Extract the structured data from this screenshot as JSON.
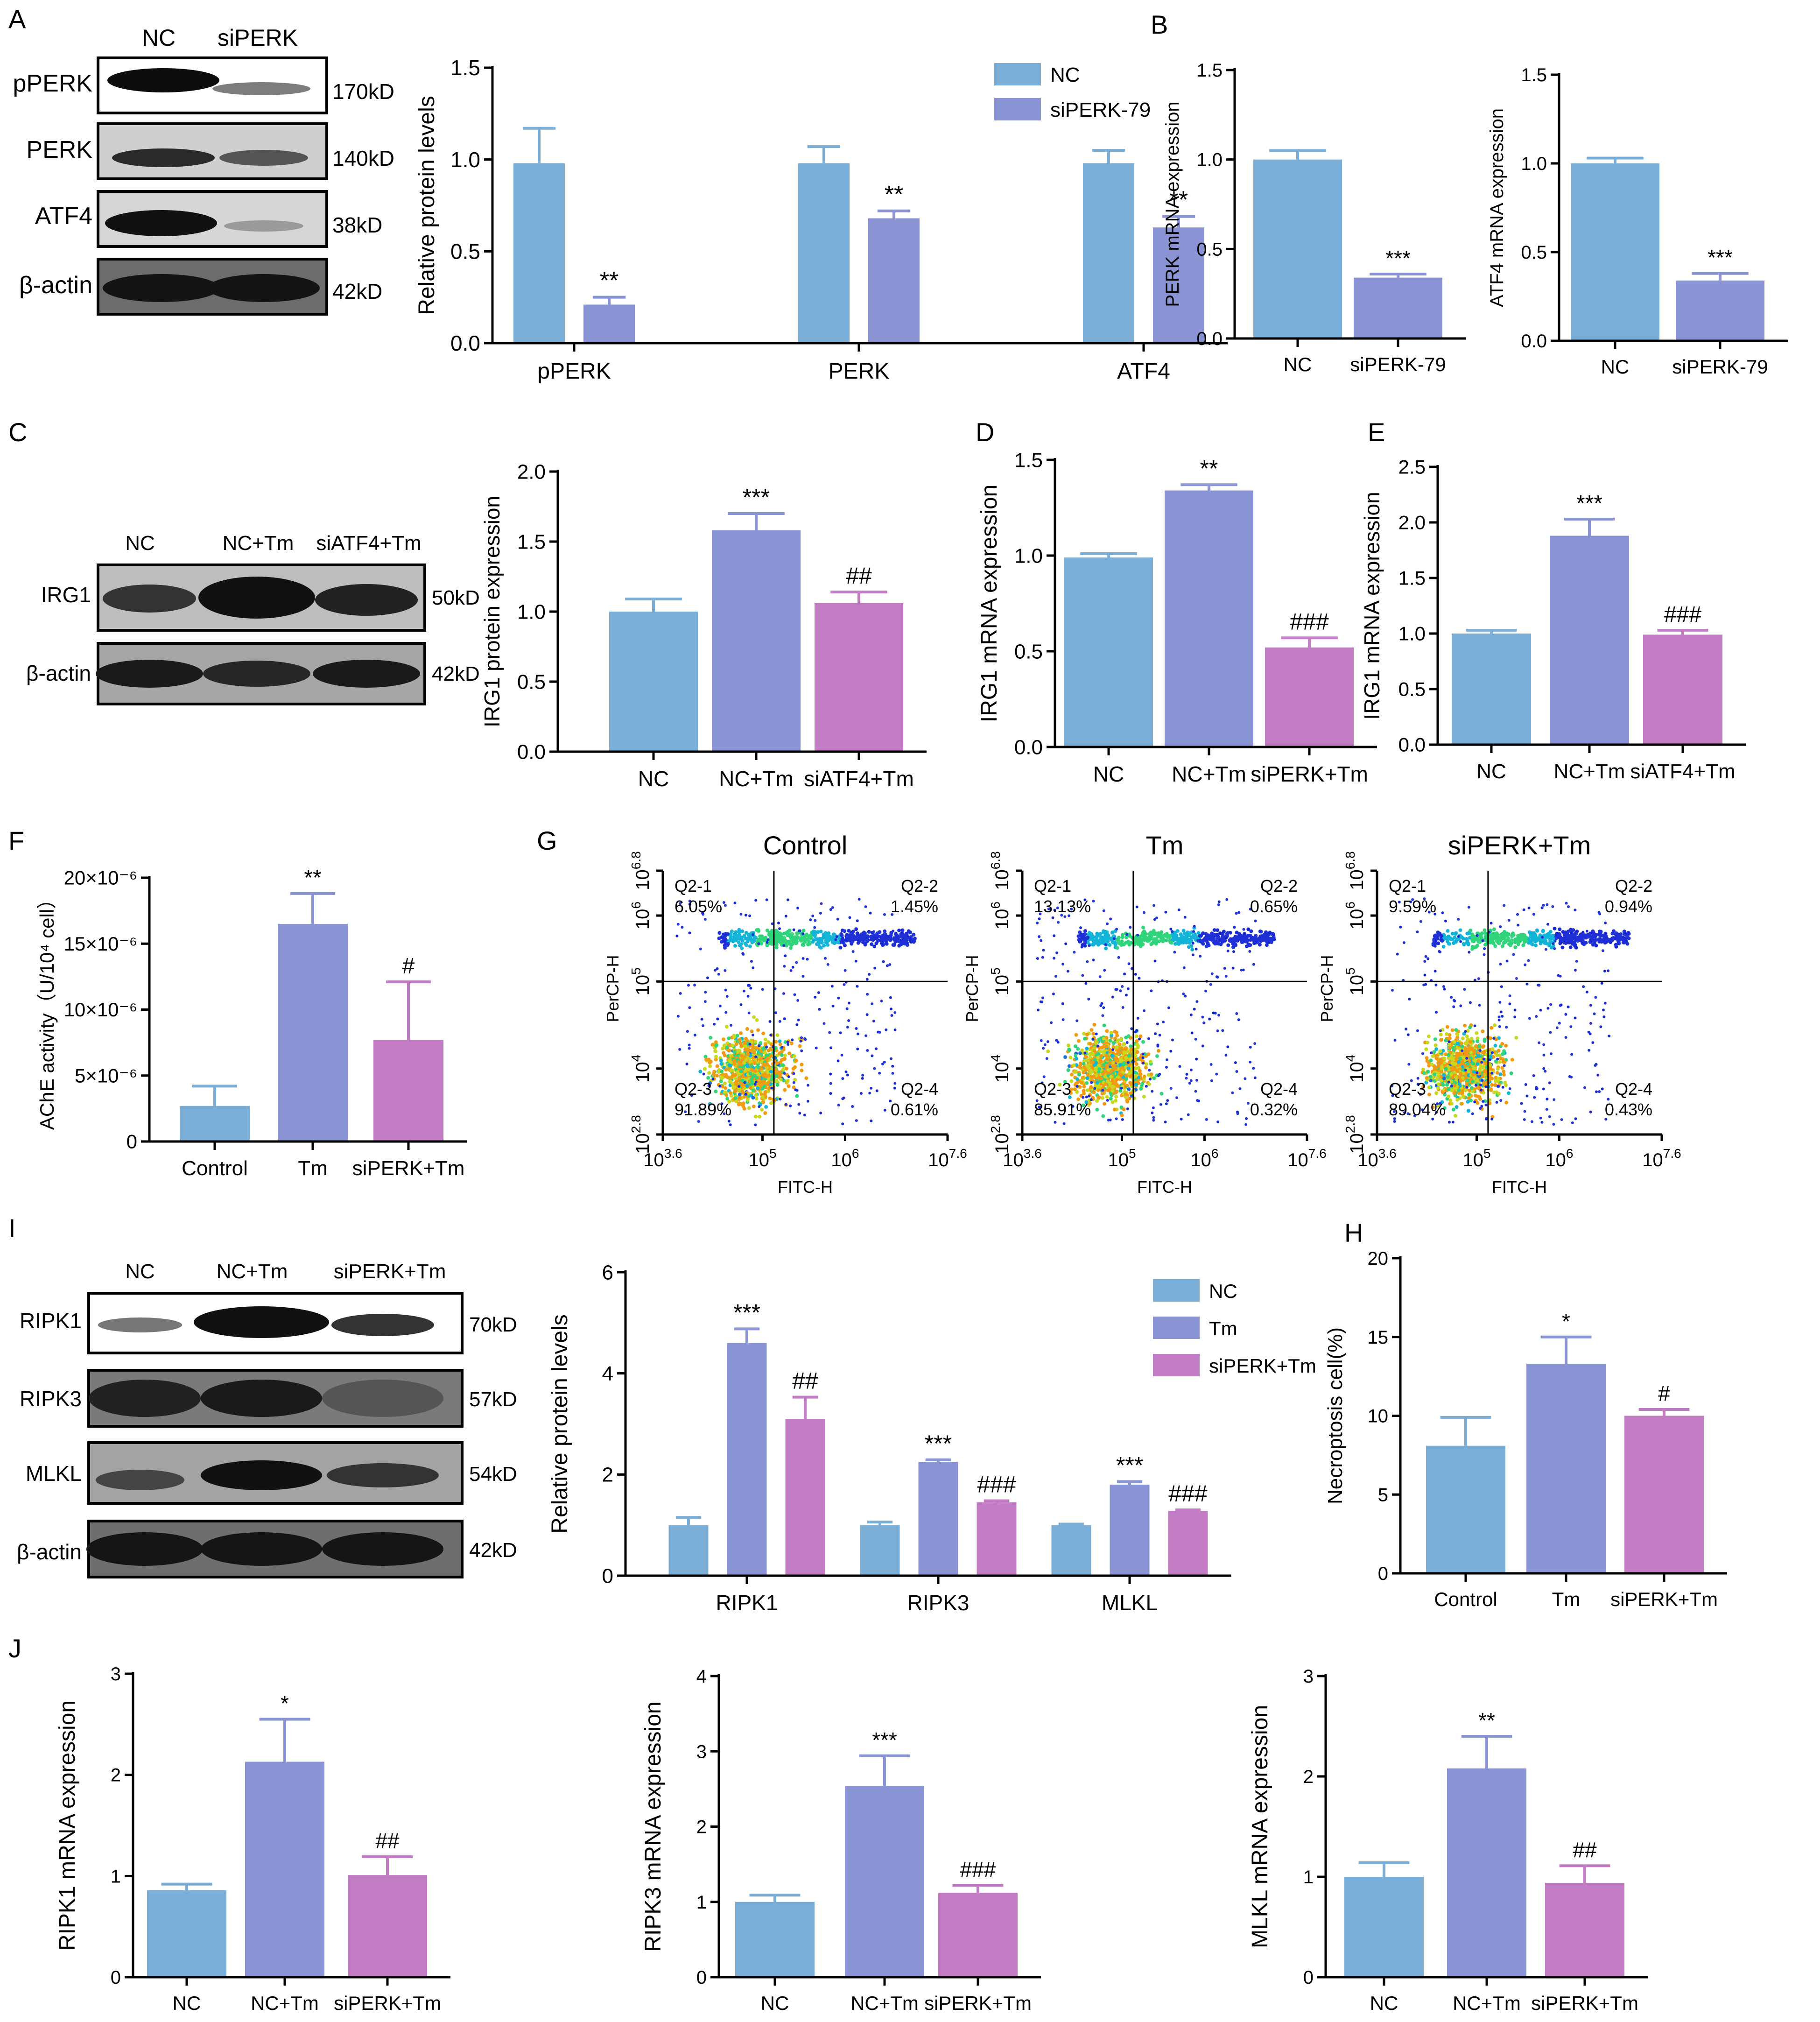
{
  "colors": {
    "nc": "#7aaed6",
    "tm": "#8a93d4",
    "si": "#c17cc3",
    "axis": "#000000"
  },
  "panels": {
    "A": {
      "letter": "A",
      "lanes": [
        "NC",
        "siPERK"
      ],
      "blots": [
        {
          "label": "pPERK",
          "size": "170kD"
        },
        {
          "label": "PERK",
          "size": "140kD"
        },
        {
          "label": "ATF4",
          "size": "38kD"
        },
        {
          "label": "β-actin",
          "size": "42kD"
        }
      ]
    },
    "B": {
      "letter": "B"
    },
    "C": {
      "letter": "C",
      "lanes": [
        "NC",
        "NC+Tm",
        "siATF4+Tm"
      ],
      "blots": [
        {
          "label": "IRG1",
          "size": "50kD"
        },
        {
          "label": "β-actin",
          "size": "42kD"
        }
      ]
    },
    "D": {
      "letter": "D"
    },
    "E": {
      "letter": "E"
    },
    "F": {
      "letter": "F"
    },
    "G": {
      "letter": "G"
    },
    "H": {
      "letter": "H"
    },
    "I": {
      "letter": "I",
      "lanes": [
        "NC",
        "NC+Tm",
        "siPERK+Tm"
      ],
      "blots": [
        {
          "label": "RIPK1",
          "size": "70kD"
        },
        {
          "label": "RIPK3",
          "size": "57kD"
        },
        {
          "label": "MLKL",
          "size": "54kD"
        },
        {
          "label": "β-actin",
          "size": "42kD"
        }
      ]
    },
    "J": {
      "letter": "J"
    }
  },
  "flow_panel": {
    "xlabel": "FITC-H",
    "ylabel": "PerCP-H",
    "x_ticks": [
      [
        "10",
        "3.6"
      ],
      [
        "10",
        "5"
      ],
      [
        "10",
        "6"
      ],
      [
        "10",
        "7.6"
      ]
    ],
    "y_ticks": [
      [
        "10",
        "2.8"
      ],
      [
        "10",
        "4"
      ],
      [
        "10",
        "5"
      ],
      [
        "10",
        "6"
      ],
      [
        "10",
        "6.8"
      ]
    ],
    "plots": [
      {
        "title": "Control",
        "q1": {
          "name": "Q2-1",
          "pct": "6.05%"
        },
        "q2": {
          "name": "Q2-2",
          "pct": "1.45%"
        },
        "q3": {
          "name": "Q2-3",
          "pct": "91.89%"
        },
        "q4": {
          "name": "Q2-4",
          "pct": "0.61%"
        }
      },
      {
        "title": "Tm",
        "q1": {
          "name": "Q2-1",
          "pct": "13.13%"
        },
        "q2": {
          "name": "Q2-2",
          "pct": "0.65%"
        },
        "q3": {
          "name": "Q2-3",
          "pct": "85.91%"
        },
        "q4": {
          "name": "Q2-4",
          "pct": "0.32%"
        }
      },
      {
        "title": "siPERK+Tm",
        "q1": {
          "name": "Q2-1",
          "pct": "9.59%"
        },
        "q2": {
          "name": "Q2-2",
          "pct": "0.94%"
        },
        "q3": {
          "name": "Q2-3",
          "pct": "89.04%"
        },
        "q4": {
          "name": "Q2-4",
          "pct": "0.43%"
        }
      }
    ]
  },
  "chart_data": [
    {
      "id": "A_bar",
      "type": "bar",
      "title": "",
      "xlabel": "",
      "ylabel": "Relative protein levels",
      "categories": [
        "pPERK",
        "PERK",
        "ATF4"
      ],
      "ylim": [
        0,
        1.5
      ],
      "yticks": [
        "0.0",
        "0.5",
        "1.0",
        "1.5"
      ],
      "legend": "top-right",
      "series": [
        {
          "name": "NC",
          "color": "nc",
          "values": [
            0.98,
            0.98,
            0.98
          ],
          "errors": [
            0.19,
            0.09,
            0.07
          ],
          "marks": [
            "",
            "",
            ""
          ]
        },
        {
          "name": "siPERK-79",
          "color": "tm",
          "values": [
            0.21,
            0.68,
            0.63
          ],
          "errors": [
            0.04,
            0.04,
            0.06
          ],
          "marks": [
            "**",
            "**",
            "**"
          ]
        }
      ]
    },
    {
      "id": "B1",
      "type": "bar",
      "ylabel": "PERK mRNA expression",
      "categories": [
        "NC",
        "siPERK-79"
      ],
      "ylim": [
        0,
        1.5
      ],
      "yticks": [
        "0.0",
        "0.5",
        "1.0",
        "1.5"
      ],
      "series": [
        {
          "name": "",
          "colors": [
            "nc",
            "tm"
          ],
          "values": [
            1.0,
            0.34
          ],
          "errors": [
            0.05,
            0.02
          ],
          "marks": [
            "",
            "***"
          ]
        }
      ]
    },
    {
      "id": "B2",
      "type": "bar",
      "ylabel": "ATF4 mRNA expression",
      "categories": [
        "NC",
        "siPERK-79"
      ],
      "ylim": [
        0,
        1.5
      ],
      "yticks": [
        "0.0",
        "0.5",
        "1.0",
        "1.5"
      ],
      "series": [
        {
          "name": "",
          "colors": [
            "nc",
            "tm"
          ],
          "values": [
            1.0,
            0.34
          ],
          "errors": [
            0.03,
            0.04
          ],
          "marks": [
            "",
            "***"
          ]
        }
      ]
    },
    {
      "id": "C_bar",
      "type": "bar",
      "ylabel": "IRG1 protein expression",
      "categories": [
        "NC",
        "NC+Tm",
        "siATF4+Tm"
      ],
      "ylim": [
        0,
        2.0
      ],
      "yticks": [
        "0.0",
        "0.5",
        "1.0",
        "1.5",
        "2.0"
      ],
      "series": [
        {
          "name": "",
          "colors": [
            "nc",
            "tm",
            "si"
          ],
          "values": [
            1.0,
            1.58,
            1.06
          ],
          "errors": [
            0.09,
            0.12,
            0.08
          ],
          "marks": [
            "",
            "***",
            "##"
          ]
        }
      ]
    },
    {
      "id": "D",
      "type": "bar",
      "ylabel": "IRG1 mRNA expression",
      "categories": [
        "NC",
        "NC+Tm",
        "siPERK+Tm"
      ],
      "ylim": [
        0,
        1.5
      ],
      "yticks": [
        "0.0",
        "0.5",
        "1.0",
        "1.5"
      ],
      "series": [
        {
          "name": "",
          "colors": [
            "nc",
            "tm",
            "si"
          ],
          "values": [
            0.99,
            1.34,
            0.52
          ],
          "errors": [
            0.02,
            0.03,
            0.05
          ],
          "marks": [
            "",
            "**",
            "###"
          ]
        }
      ]
    },
    {
      "id": "E",
      "type": "bar",
      "ylabel": "IRG1 mRNA expression",
      "categories": [
        "NC",
        "NC+Tm",
        "siATF4+Tm"
      ],
      "ylim": [
        0,
        2.5
      ],
      "yticks": [
        "0.0",
        "0.5",
        "1.0",
        "1.5",
        "2.0",
        "2.5"
      ],
      "series": [
        {
          "name": "",
          "colors": [
            "nc",
            "tm",
            "si"
          ],
          "values": [
            1.0,
            1.88,
            0.99
          ],
          "errors": [
            0.03,
            0.15,
            0.04
          ],
          "marks": [
            "",
            "***",
            "###"
          ]
        }
      ]
    },
    {
      "id": "F",
      "type": "bar",
      "ylabel": "AChE activity（U/10⁴ cell）",
      "categories": [
        "Control",
        "Tm",
        "siPERK+Tm"
      ],
      "ylim": [
        0,
        20
      ],
      "yticks": [
        "0",
        "5×10⁻⁶",
        "10×10⁻⁶",
        "15×10⁻⁶",
        "20×10⁻⁶"
      ],
      "series": [
        {
          "name": "",
          "colors": [
            "nc",
            "tm",
            "si"
          ],
          "values": [
            2.7,
            16.5,
            7.7
          ],
          "errors": [
            1.5,
            2.3,
            4.4
          ],
          "marks": [
            "",
            "**",
            "#"
          ]
        }
      ]
    },
    {
      "id": "I_bar",
      "type": "bar",
      "ylabel": "Relative protein levels",
      "categories": [
        "RIPK1",
        "RIPK3",
        "MLKL"
      ],
      "ylim": [
        0,
        6
      ],
      "yticks": [
        "0",
        "2",
        "4",
        "6"
      ],
      "legend": "top-right",
      "series": [
        {
          "name": "NC",
          "color": "nc",
          "values": [
            1.0,
            1.0,
            1.0
          ],
          "errors": [
            0.15,
            0.06,
            0.02
          ],
          "marks": [
            "",
            "",
            ""
          ]
        },
        {
          "name": "Tm",
          "color": "tm",
          "values": [
            4.6,
            2.25,
            1.8
          ],
          "errors": [
            0.28,
            0.04,
            0.06
          ],
          "marks": [
            "***",
            "***",
            "***"
          ]
        },
        {
          "name": "siPERK+Tm",
          "color": "si",
          "values": [
            3.1,
            1.45,
            1.28
          ],
          "errors": [
            0.43,
            0.03,
            0.02
          ],
          "marks": [
            "##",
            "###",
            "###"
          ]
        }
      ]
    },
    {
      "id": "H",
      "type": "bar",
      "ylabel": "Necroptosis cell(%)",
      "categories": [
        "Control",
        "Tm",
        "siPERK+Tm"
      ],
      "ylim": [
        0,
        20
      ],
      "yticks": [
        "0",
        "5",
        "10",
        "15",
        "20"
      ],
      "series": [
        {
          "name": "",
          "colors": [
            "nc",
            "tm",
            "si"
          ],
          "values": [
            8.1,
            13.3,
            10.0
          ],
          "errors": [
            1.8,
            1.7,
            0.4
          ],
          "marks": [
            "",
            "*",
            "#"
          ]
        }
      ]
    },
    {
      "id": "J1",
      "type": "bar",
      "ylabel": "RIPK1 mRNA expression",
      "categories": [
        "NC",
        "NC+Tm",
        "siPERK+Tm"
      ],
      "ylim": [
        0,
        3
      ],
      "yticks": [
        "0",
        "1",
        "2",
        "3"
      ],
      "series": [
        {
          "name": "",
          "colors": [
            "nc",
            "tm",
            "si"
          ],
          "values": [
            0.86,
            2.13,
            1.01
          ],
          "errors": [
            0.06,
            0.42,
            0.18
          ],
          "marks": [
            "",
            "*",
            "##"
          ]
        }
      ]
    },
    {
      "id": "J2",
      "type": "bar",
      "ylabel": "RIPK3 mRNA expression",
      "categories": [
        "NC",
        "NC+Tm",
        "siPERK+Tm"
      ],
      "ylim": [
        0,
        4
      ],
      "yticks": [
        "0",
        "1",
        "2",
        "3",
        "4"
      ],
      "series": [
        {
          "name": "",
          "colors": [
            "nc",
            "tm",
            "si"
          ],
          "values": [
            1.0,
            2.54,
            1.12
          ],
          "errors": [
            0.09,
            0.4,
            0.1
          ],
          "marks": [
            "",
            "***",
            "###"
          ]
        }
      ]
    },
    {
      "id": "J3",
      "type": "bar",
      "ylabel": "MLKL mRNA expression",
      "categories": [
        "NC",
        "NC+Tm",
        "siPERK+Tm"
      ],
      "ylim": [
        0,
        3
      ],
      "yticks": [
        "0",
        "1",
        "2",
        "3"
      ],
      "series": [
        {
          "name": "",
          "colors": [
            "nc",
            "tm",
            "si"
          ],
          "values": [
            1.0,
            2.08,
            0.94
          ],
          "errors": [
            0.14,
            0.32,
            0.17
          ],
          "marks": [
            "",
            "**",
            "##"
          ]
        }
      ]
    }
  ]
}
